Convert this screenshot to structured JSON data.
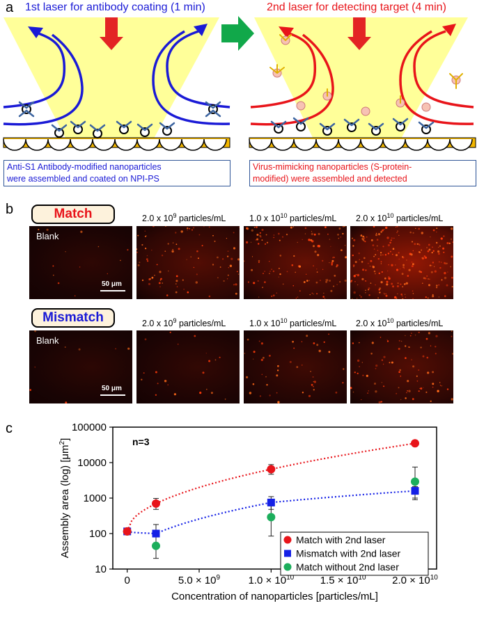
{
  "panel_a": {
    "letter": "a",
    "left_title": "1st laser for antibody coating (1 min)",
    "right_title": "2nd laser for detecting target (4 min)",
    "left_caption_line1": "Anti-S1 Antibody-modified nanoparticles",
    "left_caption_line2": "were assembled and coated on NPI-PS",
    "right_caption_line1": "Virus-mimicking nanoparticles (S-protein-",
    "right_caption_line2": "modified) were assembled and detected",
    "colors": {
      "left_text": "#1a1ad6",
      "right_text": "#e8141a",
      "light_cone": "#ffff99",
      "step_arrow": "#11a84a",
      "laser_arrow": "#e32424",
      "substrate": "#f5b800"
    }
  },
  "panel_b": {
    "letter": "b",
    "match_label": "Match",
    "mismatch_label": "Mismatch",
    "blank_label": "Blank",
    "scale_bar": "50 μm",
    "conc_labels": [
      {
        "base": "2.0 x 10",
        "exp": "9",
        "unit": " particles/mL"
      },
      {
        "base": "1.0 x 10",
        "exp": "10",
        "unit": " particles/mL"
      },
      {
        "base": "2.0 x 10",
        "exp": "10",
        "unit": " particles/mL"
      }
    ],
    "match_intensity": [
      0.05,
      0.35,
      0.5,
      0.9
    ],
    "mismatch_intensity": [
      0.03,
      0.08,
      0.18,
      0.35
    ]
  },
  "panel_c": {
    "letter": "c"
  },
  "chart_data": {
    "type": "scatter",
    "y_scale": "log",
    "ylabel_base": "Assembly area (log) [μm",
    "ylabel_sup": "2",
    "ylabel_end": "]",
    "xlabel": "Concentration of nanoparticles [particles/mL]",
    "annotation": "n=3",
    "xlim": [
      -1000000000,
      21500000000
    ],
    "ylim": [
      10,
      100000
    ],
    "y_ticks": [
      "10",
      "100",
      "1000",
      "10000",
      "100000"
    ],
    "x_ticks": [
      {
        "value": 0,
        "base": "0",
        "exp": ""
      },
      {
        "value": 5000000000,
        "base": "5.0 × 10",
        "exp": "9"
      },
      {
        "value": 10000000000,
        "base": "1.0 × 10",
        "exp": "10"
      },
      {
        "value": 15000000000,
        "base": "1.5 × 10",
        "exp": "10"
      },
      {
        "value": 20000000000,
        "base": "2.0 × 10",
        "exp": "10"
      }
    ],
    "series": [
      {
        "name": "Match with 2nd laser",
        "color": "#e8141a",
        "marker": "circle",
        "trendline": true,
        "x": [
          0,
          2000000000,
          10000000000,
          20000000000
        ],
        "y": [
          115,
          700,
          6500,
          35000
        ],
        "err_low": [
          115,
          480,
          4700,
          35000
        ],
        "err_high": [
          115,
          980,
          8800,
          35000
        ]
      },
      {
        "name": "Mismatch with 2nd laser",
        "color": "#1420e6",
        "marker": "square",
        "trendline": true,
        "x": [
          0,
          2000000000,
          10000000000,
          20000000000
        ],
        "y": [
          115,
          100,
          750,
          1600
        ],
        "err_low": [
          115,
          45,
          480,
          900
        ],
        "err_high": [
          115,
          180,
          1100,
          2100
        ]
      },
      {
        "name": "Match without 2nd laser",
        "color": "#1cae5c",
        "marker": "circle",
        "trendline": false,
        "x": [
          0,
          2000000000,
          10000000000,
          20000000000
        ],
        "y": [
          115,
          45,
          290,
          2900
        ],
        "err_low": [
          115,
          20,
          85,
          1000
        ],
        "err_high": [
          115,
          90,
          600,
          7500
        ]
      }
    ]
  }
}
